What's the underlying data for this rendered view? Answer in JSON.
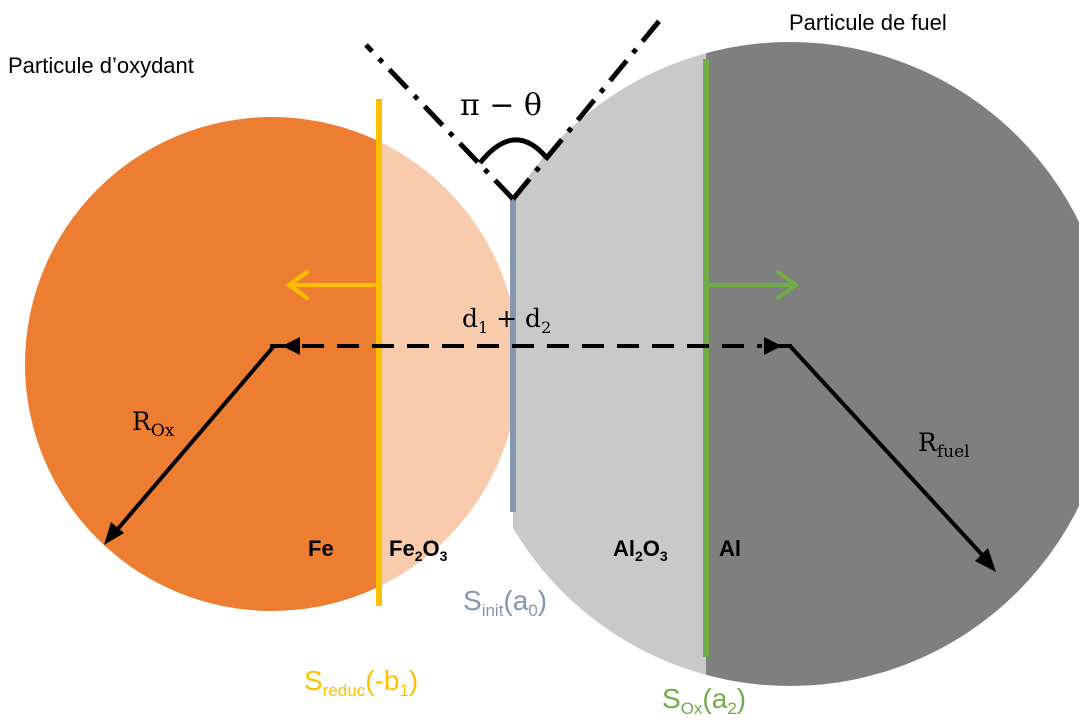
{
  "labels": {
    "oxidant_particle": "Particule d’oxydant",
    "fuel_particle": "Particule de fuel",
    "angle": "π − θ",
    "distance": {
      "base1": "d",
      "sub1": "1",
      "mid": " + d",
      "sub2": "2"
    },
    "r_ox": {
      "base": "R",
      "sub": "Ox"
    },
    "r_fuel": {
      "base": "R",
      "sub": "fuel"
    },
    "fe": "Fe",
    "fe2o3": {
      "a": "Fe",
      "s1": "2",
      "b": "O",
      "s2": "3"
    },
    "al2o3": {
      "a": "Al",
      "s1": "2",
      "b": "O",
      "s2": "3"
    },
    "al": "Al",
    "s_init": {
      "base": "S",
      "sub": "init",
      "arg_open": "(a",
      "arg_sub": "0",
      "arg_close": ")"
    },
    "s_reduc": {
      "base": "S",
      "sub": "reduc",
      "arg_open": "(-b",
      "arg_sub": "1",
      "arg_close": ")"
    },
    "s_ox": {
      "base": "S",
      "sub": "Ox",
      "arg_open": "(a",
      "arg_sub": "2",
      "arg_close": ")"
    }
  },
  "colors": {
    "fe_core": "#ed7d31",
    "fe2o3_shell": "#f8cbad",
    "al2o3_shell": "#c9c9c9",
    "al_core": "#7f7f7f",
    "reduction_front": "#ffc000",
    "oxidation_front": "#70ad47",
    "initial_interface": "#8497b0",
    "lines": "#000000"
  }
}
